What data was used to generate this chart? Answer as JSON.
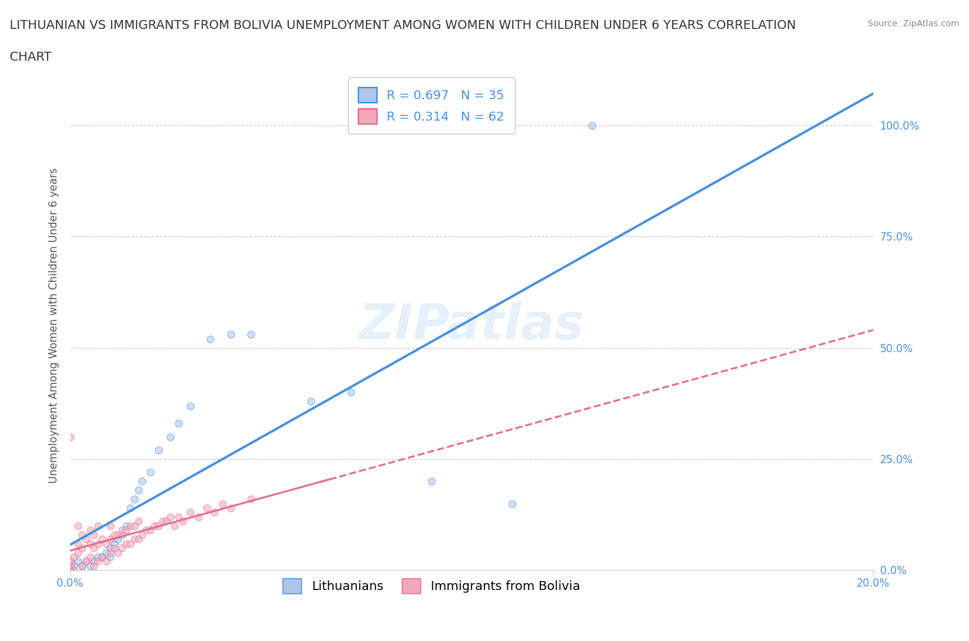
{
  "title_line1": "LITHUANIAN VS IMMIGRANTS FROM BOLIVIA UNEMPLOYMENT AMONG WOMEN WITH CHILDREN UNDER 6 YEARS CORRELATION",
  "title_line2": "CHART",
  "source": "Source: ZipAtlas.com",
  "ylabel": "Unemployment Among Women with Children Under 6 years",
  "xlim": [
    0.0,
    0.2
  ],
  "ylim": [
    0.0,
    1.1
  ],
  "yticks": [
    0.0,
    0.25,
    0.5,
    0.75,
    1.0
  ],
  "ytick_labels": [
    "0.0%",
    "25.0%",
    "50.0%",
    "75.0%",
    "100.0%"
  ],
  "xtick_labels": [
    "0.0%",
    "20.0%"
  ],
  "background_color": "#ffffff",
  "watermark": "ZIPatlas",
  "lithuanian_color": "#aec6e8",
  "bolivian_color": "#f4a7b9",
  "lithuanian_line_color": "#4a90d9",
  "bolivian_line_color": "#e07090",
  "R_lithuanian": 0.697,
  "N_lithuanian": 35,
  "R_bolivian": 0.314,
  "N_bolivian": 62,
  "legend_label_lithuanian": "Lithuanians",
  "legend_label_bolivian": "Immigrants from Bolivia",
  "grid_color": "#cccccc",
  "title_fontsize": 13,
  "axis_label_fontsize": 11,
  "tick_fontsize": 11,
  "legend_fontsize": 13,
  "scatter_alpha": 0.55,
  "scatter_size": 55,
  "lithuanian_x": [
    0.0,
    0.0,
    0.0,
    0.001,
    0.002,
    0.003,
    0.004,
    0.005,
    0.006,
    0.007,
    0.008,
    0.009,
    0.01,
    0.01,
    0.011,
    0.012,
    0.013,
    0.014,
    0.015,
    0.016,
    0.017,
    0.018,
    0.02,
    0.022,
    0.025,
    0.027,
    0.03,
    0.035,
    0.04,
    0.045,
    0.06,
    0.07,
    0.09,
    0.11,
    0.13
  ],
  "lithuanian_y": [
    0.0,
    0.01,
    0.02,
    0.01,
    0.02,
    0.01,
    0.02,
    0.01,
    0.02,
    0.03,
    0.03,
    0.04,
    0.03,
    0.05,
    0.06,
    0.07,
    0.08,
    0.1,
    0.14,
    0.16,
    0.18,
    0.2,
    0.22,
    0.27,
    0.3,
    0.33,
    0.37,
    0.52,
    0.53,
    0.53,
    0.38,
    0.4,
    0.2,
    0.15,
    1.0
  ],
  "bolivian_x": [
    0.0,
    0.0,
    0.0,
    0.0,
    0.001,
    0.001,
    0.002,
    0.002,
    0.002,
    0.003,
    0.003,
    0.003,
    0.004,
    0.004,
    0.005,
    0.005,
    0.005,
    0.006,
    0.006,
    0.006,
    0.007,
    0.007,
    0.007,
    0.008,
    0.008,
    0.009,
    0.009,
    0.01,
    0.01,
    0.01,
    0.011,
    0.011,
    0.012,
    0.012,
    0.013,
    0.013,
    0.014,
    0.014,
    0.015,
    0.015,
    0.016,
    0.016,
    0.017,
    0.017,
    0.018,
    0.019,
    0.02,
    0.021,
    0.022,
    0.023,
    0.024,
    0.025,
    0.026,
    0.027,
    0.028,
    0.03,
    0.032,
    0.034,
    0.036,
    0.038,
    0.04,
    0.045
  ],
  "bolivian_y": [
    0.0,
    0.01,
    0.02,
    0.3,
    0.0,
    0.03,
    0.04,
    0.06,
    0.1,
    0.01,
    0.05,
    0.08,
    0.02,
    0.07,
    0.03,
    0.06,
    0.09,
    0.01,
    0.05,
    0.08,
    0.02,
    0.06,
    0.1,
    0.03,
    0.07,
    0.02,
    0.06,
    0.04,
    0.07,
    0.1,
    0.05,
    0.08,
    0.04,
    0.08,
    0.05,
    0.09,
    0.06,
    0.09,
    0.06,
    0.1,
    0.07,
    0.1,
    0.07,
    0.11,
    0.08,
    0.09,
    0.09,
    0.1,
    0.1,
    0.11,
    0.11,
    0.12,
    0.1,
    0.12,
    0.11,
    0.13,
    0.12,
    0.14,
    0.13,
    0.15,
    0.14,
    0.16
  ]
}
